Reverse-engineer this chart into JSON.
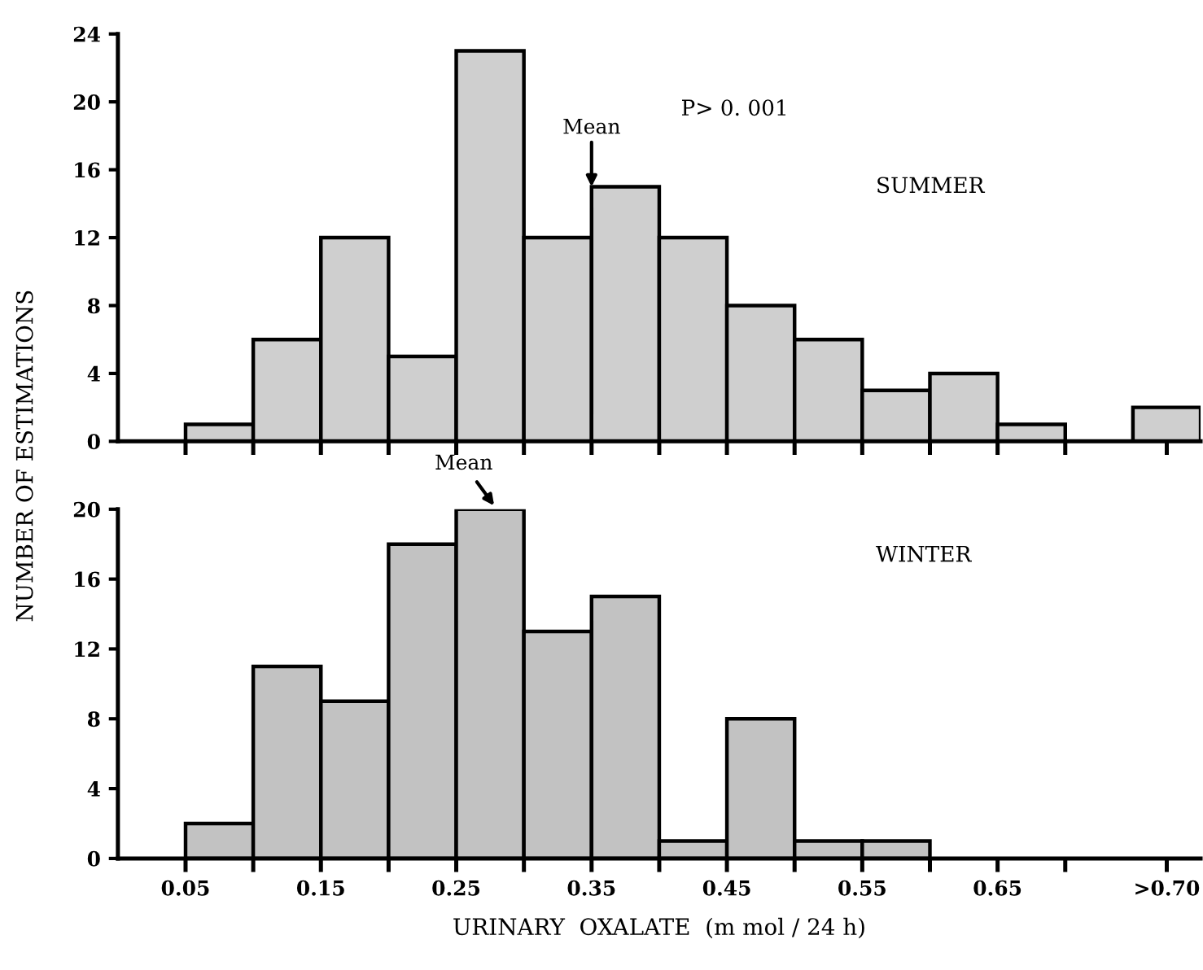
{
  "chart_data": [
    {
      "type": "histogram",
      "ylabel": "NUMBER OF ESTIMATIONS",
      "bins": [
        0.05,
        0.1,
        0.15,
        0.2,
        0.25,
        0.3,
        0.35,
        0.4,
        0.45,
        0.5,
        0.55,
        0.6,
        0.65,
        0.7,
        0.75,
        0.8
      ],
      "values": [
        1,
        6,
        12,
        5,
        23,
        12,
        15,
        12,
        8,
        6,
        3,
        4,
        1,
        null,
        2
      ],
      "color": "#cfcfcf",
      "xlim": [
        0,
        0.8
      ],
      "ylim": [
        0,
        24
      ],
      "yticks": [
        0,
        4,
        8,
        12,
        16,
        20,
        24
      ],
      "xticks": [
        0.05,
        0.1,
        0.15,
        0.2,
        0.25,
        0.3,
        0.35,
        0.4,
        0.45,
        0.5,
        0.55,
        0.6,
        0.65,
        0.7,
        0.775
      ],
      "tick_labels": "y",
      "grid": false,
      "legend": false,
      "annotations": [
        {
          "text": "Mean",
          "x": 0.35,
          "y": 15
        },
        "P> 0. 001",
        "SUMMER"
      ]
    },
    {
      "type": "histogram",
      "xlabel": "URINARY  OXALATE  (m mol / 24 h)",
      "bins": [
        0.05,
        0.1,
        0.15,
        0.2,
        0.25,
        0.3,
        0.35,
        0.4,
        0.45,
        0.5,
        0.55,
        0.6,
        0.65,
        0.7,
        0.75,
        0.8
      ],
      "values": [
        2,
        11,
        9,
        18,
        20,
        13,
        15,
        1,
        8,
        1,
        1,
        0,
        0,
        null,
        0
      ],
      "color": "#c2c2c2",
      "xlim": [
        0,
        0.8
      ],
      "ylim": [
        0,
        20
      ],
      "yticks": [
        0,
        4,
        8,
        12,
        16,
        20
      ],
      "xticks": [
        {
          "value": 0.05,
          "label": "0.05"
        },
        {
          "value": 0.1,
          "label": null
        },
        {
          "value": 0.15,
          "label": "0.15"
        },
        {
          "value": 0.2,
          "label": null
        },
        {
          "value": 0.25,
          "label": "0.25"
        },
        {
          "value": 0.3,
          "label": null
        },
        {
          "value": 0.35,
          "label": "0.35"
        },
        {
          "value": 0.4,
          "label": null
        },
        {
          "value": 0.45,
          "label": "0.45"
        },
        {
          "value": 0.5,
          "label": null
        },
        {
          "value": 0.55,
          "label": "0.55"
        },
        {
          "value": 0.6,
          "label": null
        },
        {
          "value": 0.65,
          "label": "0.65"
        },
        {
          "value": 0.7,
          "label": null
        },
        {
          "value": 0.775,
          "label": ">0.70"
        }
      ],
      "grid": false,
      "legend": false,
      "annotations": [
        {
          "text": "Mean",
          "x": 0.28,
          "y": 20
        },
        "WINTER"
      ]
    }
  ]
}
